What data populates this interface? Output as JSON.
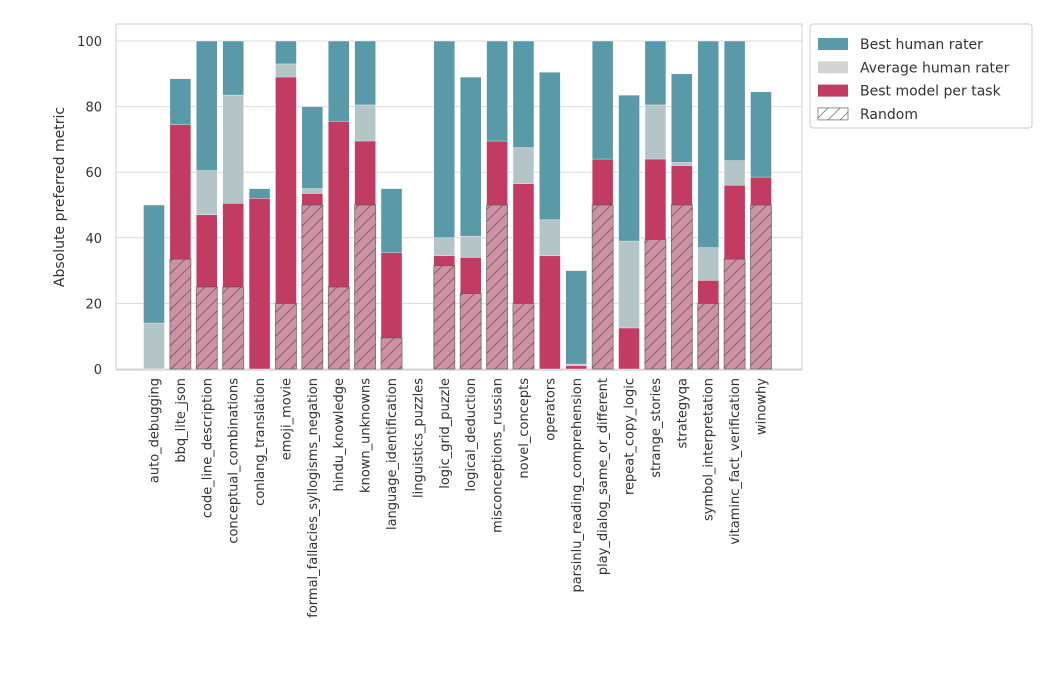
{
  "chart_data": {
    "type": "bar",
    "title": "",
    "xlabel": "",
    "ylabel": "Absolute preferred metric",
    "ylim": [
      0,
      100
    ],
    "yticks": [
      0,
      20,
      40,
      60,
      80,
      100
    ],
    "grid": true,
    "legend_position": "upper right, outside plot",
    "categories": [
      "auto_debugging",
      "bbq_lite_json",
      "code_line_description",
      "conceptual_combinations",
      "conlang_translation",
      "emoji_movie",
      "formal_fallacies_syllogisms_negation",
      "hindu_knowledge",
      "known_unknowns",
      "language_identification",
      "linguistics_puzzles",
      "logic_grid_puzzle",
      "logical_deduction",
      "misconceptions_russian",
      "novel_concepts",
      "operators",
      "parsinlu_reading_comprehension",
      "play_dialog_same_or_different",
      "repeat_copy_logic",
      "strange_stories",
      "strategyqa",
      "symbol_interpretation",
      "vitaminc_fact_verification",
      "winowhy"
    ],
    "series": [
      {
        "name": "Best human rater",
        "color": "#5a9aa8",
        "values": [
          50,
          88.5,
          100,
          100,
          55,
          100,
          80,
          100,
          100,
          55,
          0,
          100,
          89,
          100,
          100,
          90.5,
          30,
          100,
          83.5,
          100,
          90,
          100,
          100,
          84.5
        ]
      },
      {
        "name": "Average human rater",
        "color": "#d3d3d3",
        "values": [
          14,
          60,
          60.5,
          83.5,
          17.5,
          93,
          55,
          62,
          80.5,
          16.5,
          0,
          40,
          40.5,
          65,
          67.5,
          45.5,
          1.5,
          52,
          39,
          80.5,
          63,
          37,
          63.5,
          52.5
        ]
      },
      {
        "name": "Best model per task",
        "color": "#c23b63",
        "values": [
          0,
          74.5,
          47,
          50.5,
          52,
          89,
          53.5,
          75.5,
          69.5,
          35.5,
          0,
          34.5,
          34,
          69.5,
          56.5,
          34.5,
          1,
          64,
          12.5,
          64,
          62,
          27,
          56,
          58.5
        ]
      },
      {
        "name": "Random",
        "color": "#ffffff",
        "values": [
          0,
          33.5,
          25,
          25,
          0,
          20,
          50,
          25,
          50,
          9.5,
          0,
          31.5,
          23,
          50,
          20,
          0,
          0,
          50,
          0,
          39.5,
          50,
          20,
          33.5,
          50
        ]
      }
    ]
  }
}
